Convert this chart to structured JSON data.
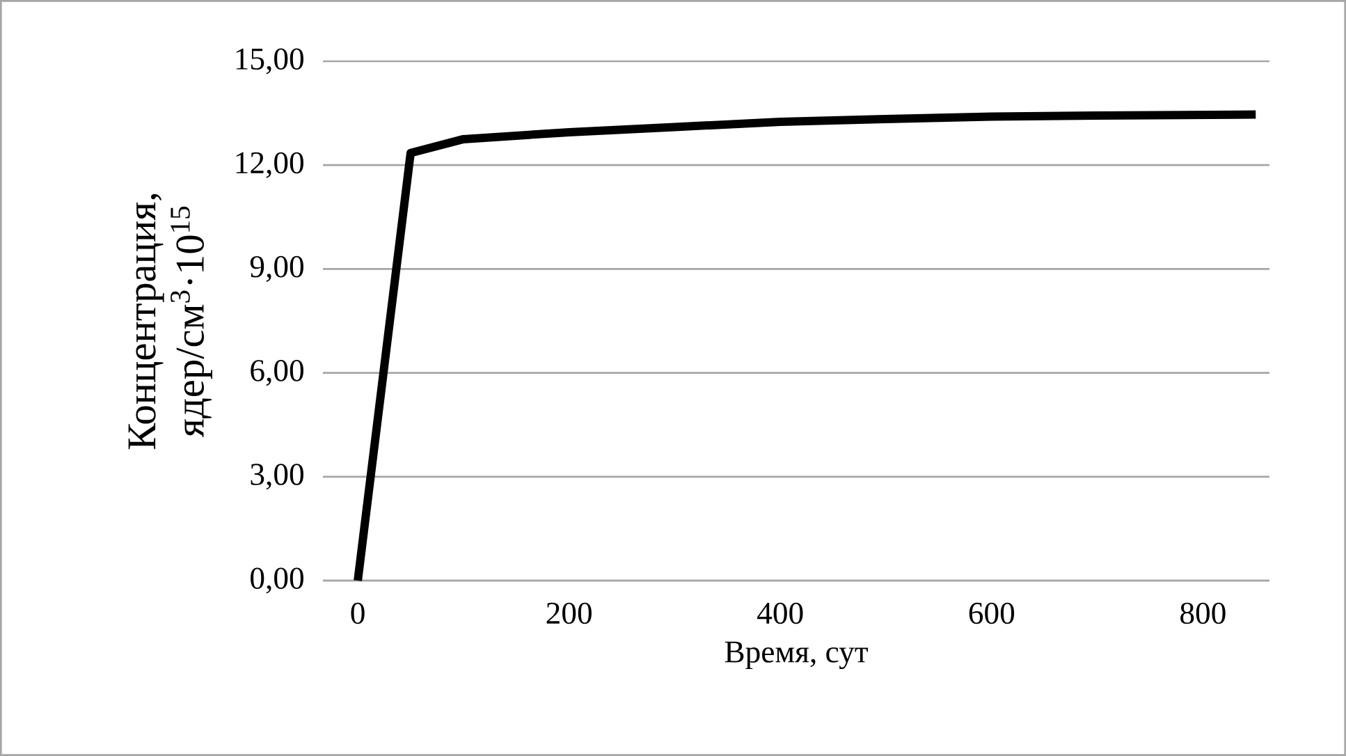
{
  "chart_data": {
    "type": "line",
    "xlabel": "Время, сут",
    "ylabel": "Концентрация, ядер/см$^{3}$·10$^{15}$",
    "x": [
      0,
      50,
      100,
      200,
      300,
      400,
      500,
      600,
      700,
      850
    ],
    "series": [
      {
        "color": "#000000",
        "values": [
          0,
          12.35,
          12.75,
          12.95,
          13.1,
          13.25,
          13.33,
          13.4,
          13.43,
          13.46
        ]
      }
    ],
    "xlim": [
      -33,
      863
    ],
    "ylim": [
      0,
      15
    ],
    "xticks": [
      0,
      200,
      400,
      600,
      800
    ],
    "yticks": [
      {
        "value": 0,
        "label": "0,00"
      },
      {
        "value": 3,
        "label": "3,00"
      },
      {
        "value": 6,
        "label": "6,00"
      },
      {
        "value": 9,
        "label": "9,00"
      },
      {
        "value": 12,
        "label": "12,00"
      },
      {
        "value": 15,
        "label": "15,00"
      }
    ],
    "grid": "y"
  }
}
